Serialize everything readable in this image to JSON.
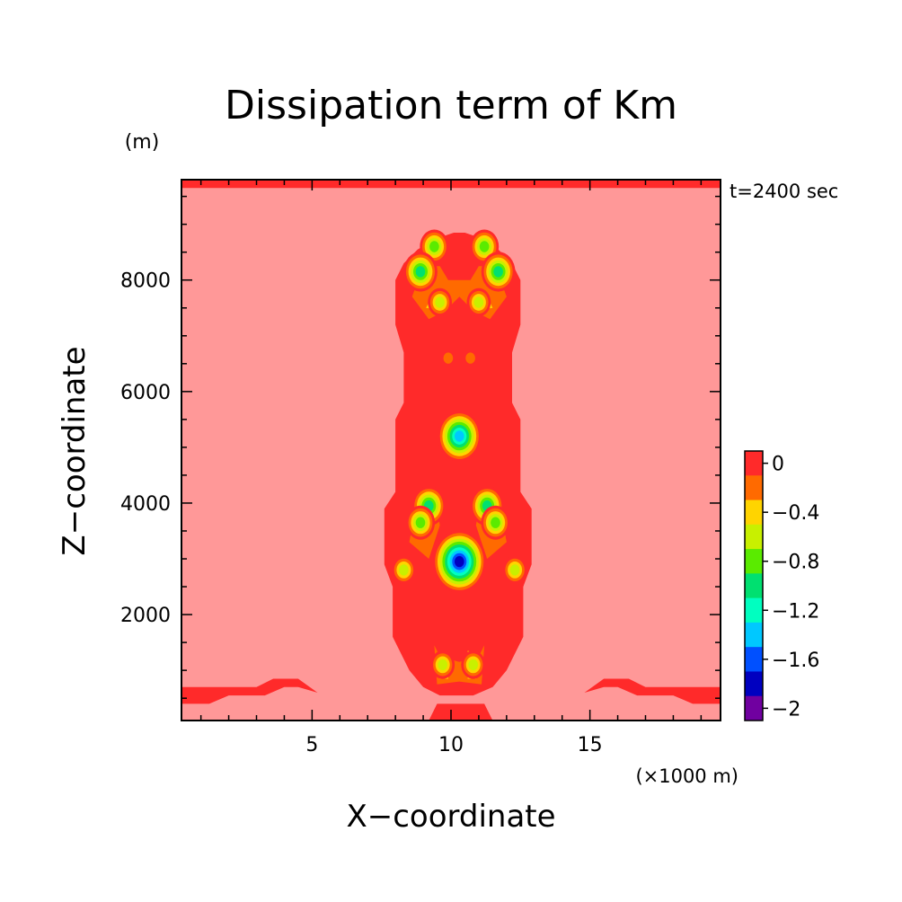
{
  "chart_data": {
    "type": "heatmap",
    "title": "Dissipation term of Km",
    "xlabel": "X−coordinate",
    "ylabel": "Z−coordinate",
    "x_unit": "(×1000 m)",
    "y_unit": "(m)",
    "time_label": "t=2400 sec",
    "xlim": [
      0.3,
      19.7
    ],
    "ylim": [
      100,
      9800
    ],
    "x_ticks": [
      5,
      10,
      15
    ],
    "x_tick_labels": [
      "5",
      "10",
      "15"
    ],
    "y_ticks": [
      2000,
      4000,
      6000,
      8000
    ],
    "y_tick_labels": [
      "2000",
      "4000",
      "6000",
      "8000"
    ],
    "colorbar": {
      "levels": [
        0,
        -0.2,
        -0.4,
        -0.6,
        -0.8,
        -1.0,
        -1.2,
        -1.4,
        -1.6,
        -1.8,
        -2.0
      ],
      "labels": [
        "0",
        "−0.4",
        "−0.8",
        "−1.2",
        "−1.6",
        "−2"
      ],
      "label_values": [
        0,
        -0.4,
        -0.8,
        -1.2,
        -1.6,
        -2.0
      ],
      "colors": [
        "#ff2a2a",
        "#ff6a00",
        "#ffd400",
        "#c8f000",
        "#5aeb00",
        "#00e070",
        "#00ffc0",
        "#00c8ff",
        "#0050ff",
        "#0000c0",
        "#7000a0"
      ]
    },
    "background_color": "#ff9898",
    "core_color": "#ff2a2a",
    "regions": [
      {
        "level": 0,
        "polygon": [
          [
            0.3,
            9650
          ],
          [
            19.7,
            9650
          ],
          [
            19.7,
            9800
          ],
          [
            0.3,
            9800
          ]
        ]
      },
      {
        "level": 0,
        "polygon": [
          [
            0.3,
            400
          ],
          [
            1.3,
            400
          ],
          [
            2.0,
            550
          ],
          [
            3.3,
            550
          ],
          [
            4.0,
            700
          ],
          [
            4.5,
            700
          ],
          [
            5.2,
            600
          ],
          [
            4.5,
            850
          ],
          [
            3.6,
            850
          ],
          [
            3.0,
            700
          ],
          [
            1.5,
            700
          ],
          [
            0.3,
            700
          ]
        ]
      },
      {
        "level": 0,
        "polygon": [
          [
            19.7,
            400
          ],
          [
            18.7,
            400
          ],
          [
            18.0,
            550
          ],
          [
            16.7,
            550
          ],
          [
            16.0,
            700
          ],
          [
            15.5,
            700
          ],
          [
            14.8,
            600
          ],
          [
            15.5,
            850
          ],
          [
            16.4,
            850
          ],
          [
            17.0,
            700
          ],
          [
            18.5,
            700
          ],
          [
            19.7,
            700
          ]
        ]
      },
      {
        "level": 0,
        "polygon": [
          [
            9.5,
            8750
          ],
          [
            10.1,
            8850
          ],
          [
            10.5,
            8850
          ],
          [
            11.1,
            8750
          ],
          [
            11.7,
            8550
          ],
          [
            12.2,
            8300
          ],
          [
            12.5,
            8000
          ],
          [
            12.5,
            7200
          ],
          [
            12.2,
            6700
          ],
          [
            12.2,
            5800
          ],
          [
            12.5,
            5500
          ],
          [
            12.5,
            4200
          ],
          [
            12.9,
            3900
          ],
          [
            12.9,
            2900
          ],
          [
            12.6,
            2500
          ],
          [
            12.6,
            1600
          ],
          [
            12.0,
            1000
          ],
          [
            11.5,
            700
          ],
          [
            10.8,
            550
          ],
          [
            9.6,
            550
          ],
          [
            9.0,
            700
          ],
          [
            8.5,
            1000
          ],
          [
            7.9,
            1600
          ],
          [
            7.9,
            2500
          ],
          [
            7.6,
            2900
          ],
          [
            7.6,
            3900
          ],
          [
            8.0,
            4200
          ],
          [
            8.0,
            5500
          ],
          [
            8.3,
            5800
          ],
          [
            8.3,
            6700
          ],
          [
            8.0,
            7200
          ],
          [
            8.0,
            8000
          ],
          [
            8.3,
            8300
          ],
          [
            8.8,
            8550
          ]
        ]
      },
      {
        "level": 0,
        "polygon": [
          [
            9.2,
            100
          ],
          [
            9.5,
            400
          ],
          [
            11.2,
            400
          ],
          [
            11.5,
            100
          ]
        ]
      },
      {
        "level": -0.2,
        "polygon": [
          [
            9.0,
            8250
          ],
          [
            9.6,
            8250
          ],
          [
            9.9,
            8000
          ],
          [
            10.7,
            8000
          ],
          [
            11.0,
            8250
          ],
          [
            11.6,
            8250
          ],
          [
            12.0,
            7700
          ],
          [
            11.4,
            7300
          ],
          [
            10.8,
            7450
          ],
          [
            10.3,
            7700
          ],
          [
            9.8,
            7450
          ],
          [
            9.2,
            7300
          ],
          [
            8.6,
            7700
          ]
        ]
      },
      {
        "level": -0.2,
        "polygon": [
          [
            8.8,
            4100
          ],
          [
            9.4,
            4200
          ],
          [
            9.6,
            3600
          ],
          [
            9.2,
            3000
          ],
          [
            8.5,
            3300
          ]
        ]
      },
      {
        "level": -0.2,
        "polygon": [
          [
            11.7,
            4100
          ],
          [
            11.1,
            4200
          ],
          [
            10.9,
            3600
          ],
          [
            11.3,
            3000
          ],
          [
            12.0,
            3300
          ]
        ]
      },
      {
        "level": -0.2,
        "polygon": [
          [
            9.4,
            1450
          ],
          [
            9.6,
            1250
          ],
          [
            10.3,
            1150
          ],
          [
            11.0,
            1250
          ],
          [
            11.2,
            1450
          ],
          [
            11.1,
            750
          ],
          [
            10.3,
            800
          ],
          [
            9.5,
            750
          ]
        ]
      },
      {
        "level": -0.4,
        "polygon": [
          [
            9.0,
            8300
          ],
          [
            9.5,
            8200
          ],
          [
            9.3,
            8000
          ],
          [
            8.7,
            8050
          ]
        ]
      },
      {
        "level": -0.4,
        "polygon": [
          [
            11.6,
            8300
          ],
          [
            11.1,
            8200
          ],
          [
            11.3,
            8000
          ],
          [
            11.9,
            8050
          ]
        ]
      },
      {
        "level": -0.4,
        "polygon": [
          [
            9.3,
            7700
          ],
          [
            10.0,
            7600
          ],
          [
            9.8,
            7450
          ],
          [
            9.1,
            7500
          ]
        ]
      },
      {
        "level": -0.4,
        "polygon": [
          [
            11.3,
            7700
          ],
          [
            10.6,
            7600
          ],
          [
            10.8,
            7450
          ],
          [
            11.5,
            7500
          ]
        ]
      },
      {
        "level": -0.4,
        "polygon": [
          [
            9.0,
            3850
          ],
          [
            9.4,
            3900
          ],
          [
            9.3,
            3500
          ],
          [
            8.7,
            3400
          ]
        ]
      },
      {
        "level": -0.4,
        "polygon": [
          [
            11.6,
            3850
          ],
          [
            11.2,
            3900
          ],
          [
            11.3,
            3500
          ],
          [
            11.9,
            3400
          ]
        ]
      },
      {
        "level": -0.4,
        "polygon": [
          [
            9.6,
            1350
          ],
          [
            9.9,
            1300
          ],
          [
            9.9,
            850
          ],
          [
            9.6,
            850
          ]
        ]
      },
      {
        "level": -0.4,
        "polygon": [
          [
            10.6,
            1350
          ],
          [
            10.9,
            1300
          ],
          [
            10.9,
            850
          ],
          [
            10.6,
            850
          ]
        ]
      }
    ],
    "spots": [
      {
        "x": 9.4,
        "z": 8600,
        "min_level": -0.8
      },
      {
        "x": 11.2,
        "z": 8600,
        "min_level": -0.8
      },
      {
        "x": 8.9,
        "z": 8150,
        "min_level": -1.0
      },
      {
        "x": 11.7,
        "z": 8150,
        "min_level": -1.0
      },
      {
        "x": 9.6,
        "z": 7600,
        "min_level": -0.6
      },
      {
        "x": 11.0,
        "z": 7600,
        "min_level": -0.6
      },
      {
        "x": 9.9,
        "z": 6600,
        "min_level": -0.2
      },
      {
        "x": 10.7,
        "z": 6600,
        "min_level": -0.2
      },
      {
        "x": 10.3,
        "z": 5200,
        "min_level": -1.4
      },
      {
        "x": 9.2,
        "z": 3950,
        "min_level": -1.0
      },
      {
        "x": 11.3,
        "z": 3950,
        "min_level": -1.0
      },
      {
        "x": 8.9,
        "z": 3650,
        "min_level": -0.8
      },
      {
        "x": 11.6,
        "z": 3650,
        "min_level": -0.8
      },
      {
        "x": 10.3,
        "z": 2950,
        "min_level": -1.8
      },
      {
        "x": 8.3,
        "z": 2800,
        "min_level": -0.6
      },
      {
        "x": 12.3,
        "z": 2800,
        "min_level": -0.6
      },
      {
        "x": 9.7,
        "z": 1100,
        "min_level": -0.6
      },
      {
        "x": 10.8,
        "z": 1100,
        "min_level": -0.6
      }
    ]
  }
}
